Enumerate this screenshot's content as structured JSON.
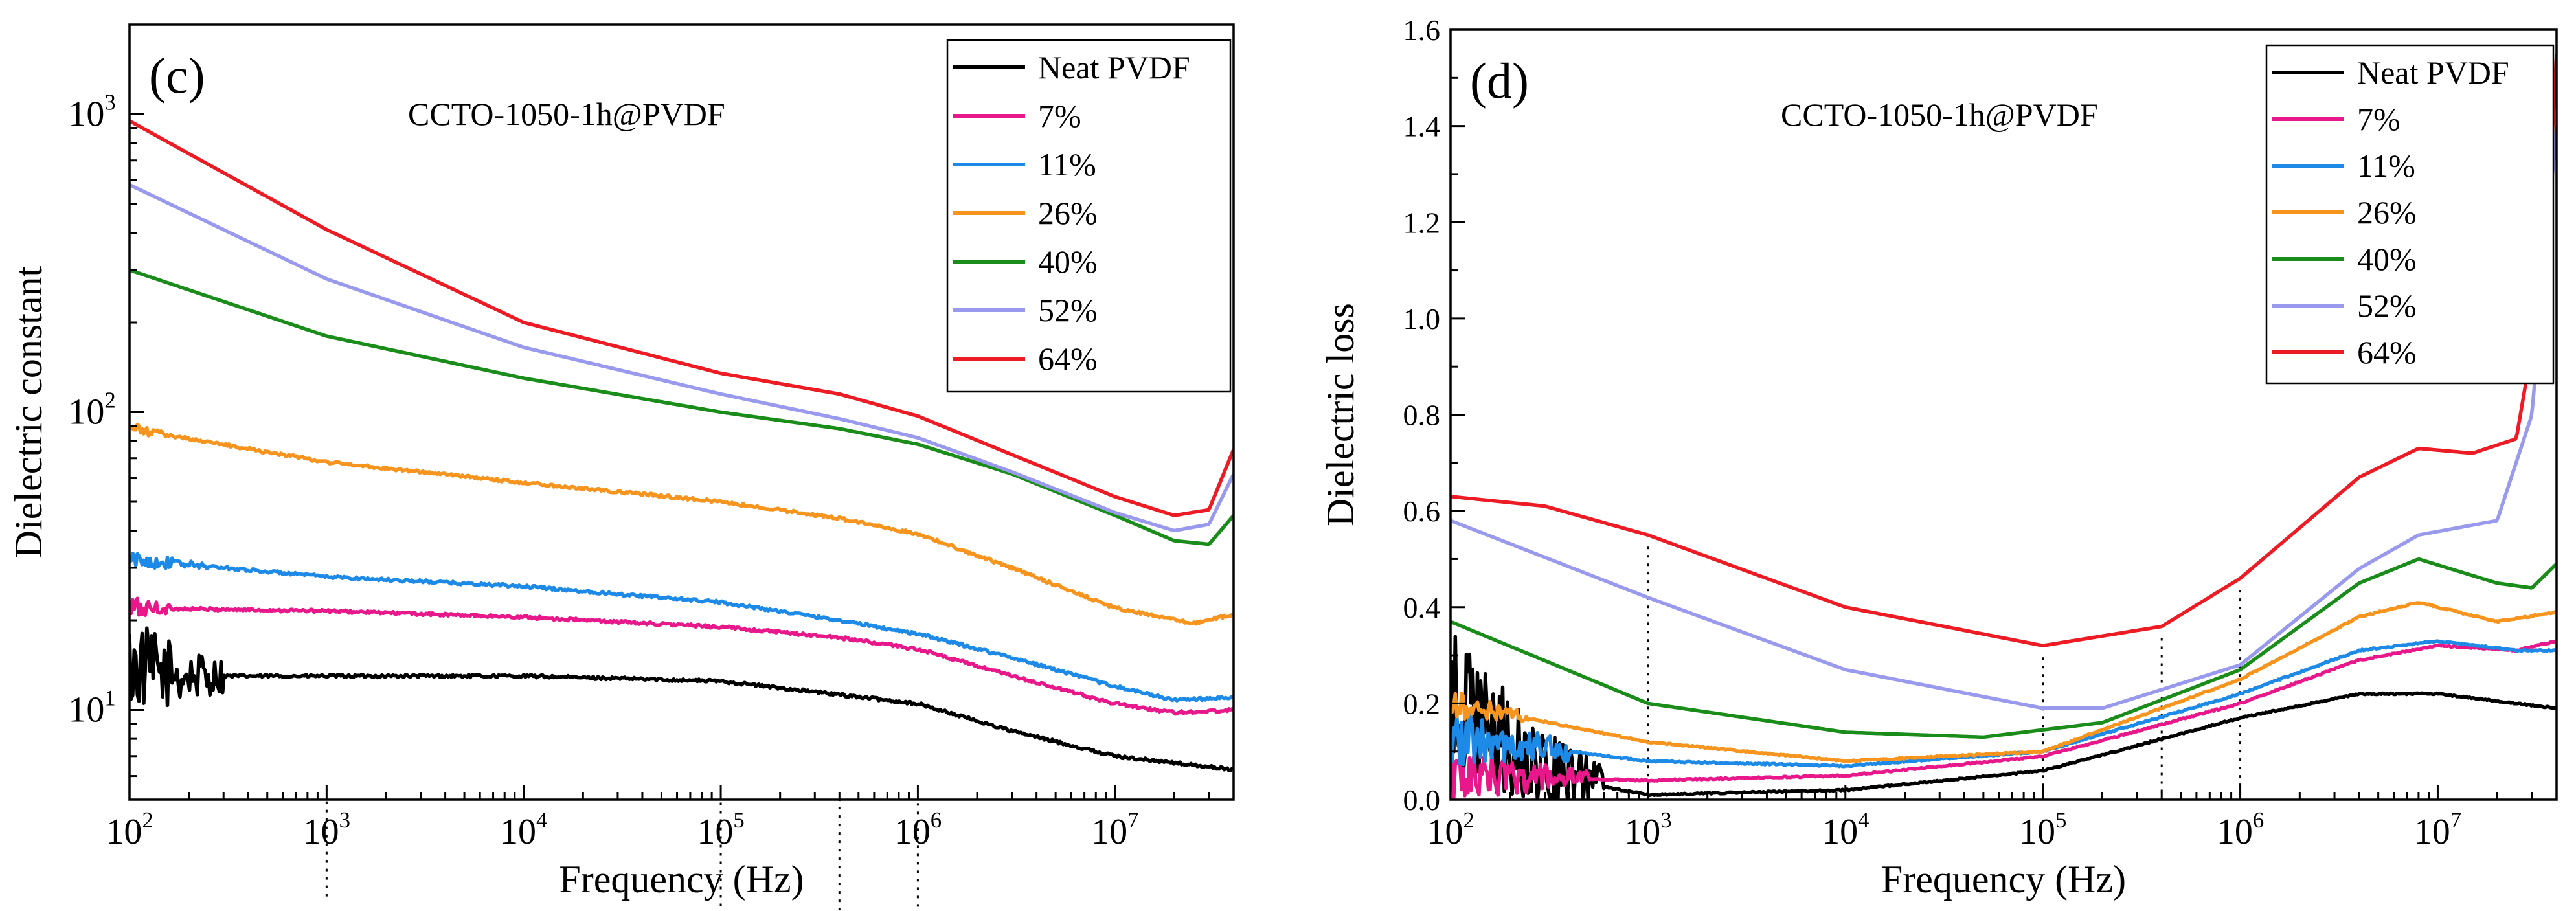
{
  "chart_data": [
    {
      "panel_label": "(c)",
      "type": "line",
      "annotation": "CCTO-1050-1h@PVDF",
      "xlabel": "Frequency (Hz)",
      "ylabel": "Dielectric constant",
      "xscale": "log",
      "yscale": "log",
      "xlim": [
        100,
        40000000
      ],
      "ylim": [
        5,
        2000
      ],
      "x_ticks": [
        {
          "value": 100,
          "base": "10",
          "exp": "2"
        },
        {
          "value": 1000,
          "base": "10",
          "exp": "3"
        },
        {
          "value": 10000,
          "base": "10",
          "exp": "4"
        },
        {
          "value": 100000,
          "base": "10",
          "exp": "5"
        },
        {
          "value": 1000000,
          "base": "10",
          "exp": "6"
        },
        {
          "value": 10000000,
          "base": "10",
          "exp": "7"
        }
      ],
      "y_ticks": [
        {
          "value": 10,
          "base": "10",
          "exp": "1"
        },
        {
          "value": 100,
          "base": "10",
          "exp": "2"
        },
        {
          "value": 1000,
          "base": "10",
          "exp": "3"
        }
      ],
      "reference_lines_x": [
        1000,
        100000,
        400000,
        1000000
      ],
      "legend_position": "top-right",
      "grid": false,
      "series": [
        {
          "name": "Neat PVDF",
          "color": "#000000",
          "noise_until": 300,
          "noise_amp": 0.35,
          "points": [
            [
              100,
              14
            ],
            [
              200,
              13
            ],
            [
              1000,
              13
            ],
            [
              10000,
              13
            ],
            [
              100000,
              12.5
            ],
            [
              300000,
              11.5
            ],
            [
              1000000,
              10.5
            ],
            [
              3000000,
              8.5
            ],
            [
              10000000,
              7
            ],
            [
              40000000,
              6.3
            ]
          ]
        },
        {
          "name": "7%",
          "color": "#e8178a",
          "noise_until": 160,
          "noise_amp": 0.1,
          "points": [
            [
              100,
              22
            ],
            [
              1000,
              21.5
            ],
            [
              10000,
              20.5
            ],
            [
              100000,
              19
            ],
            [
              400000,
              17.5
            ],
            [
              1000000,
              16
            ],
            [
              3000000,
              13
            ],
            [
              10000000,
              10.5
            ],
            [
              20000000,
              9.8
            ],
            [
              40000000,
              10
            ]
          ]
        },
        {
          "name": "11%",
          "color": "#1e8ae8",
          "noise_until": 250,
          "noise_amp": 0.06,
          "points": [
            [
              100,
              32
            ],
            [
              1000,
              28
            ],
            [
              10000,
              26
            ],
            [
              100000,
              23
            ],
            [
              400000,
              20
            ],
            [
              1000000,
              18
            ],
            [
              3000000,
              15
            ],
            [
              10000000,
              12
            ],
            [
              20000000,
              10.8
            ],
            [
              40000000,
              11
            ]
          ]
        },
        {
          "name": "26%",
          "color": "#f7941d",
          "noise_until": 160,
          "noise_amp": 0.05,
          "points": [
            [
              100,
              88
            ],
            [
              1000,
              68
            ],
            [
              10000,
              58
            ],
            [
              100000,
              50
            ],
            [
              400000,
              44
            ],
            [
              1000000,
              39
            ],
            [
              3000000,
              30
            ],
            [
              10000000,
              22
            ],
            [
              25000000,
              19.5
            ],
            [
              40000000,
              21
            ]
          ]
        },
        {
          "name": "40%",
          "color": "#1a8c1a",
          "noise_until": 0,
          "noise_amp": 0,
          "points": [
            [
              100,
              300
            ],
            [
              1000,
              180
            ],
            [
              10000,
              130
            ],
            [
              100000,
              100
            ],
            [
              400000,
              88
            ],
            [
              1000000,
              78
            ],
            [
              3000000,
              62
            ],
            [
              10000000,
              45
            ],
            [
              20000000,
              37
            ],
            [
              30000000,
              36
            ],
            [
              40000000,
              45
            ]
          ]
        },
        {
          "name": "52%",
          "color": "#9999ee",
          "noise_until": 0,
          "noise_amp": 0,
          "points": [
            [
              100,
              580
            ],
            [
              1000,
              280
            ],
            [
              10000,
              165
            ],
            [
              100000,
              115
            ],
            [
              400000,
              95
            ],
            [
              1000000,
              82
            ],
            [
              3000000,
              63
            ],
            [
              10000000,
              46
            ],
            [
              20000000,
              40
            ],
            [
              30000000,
              42
            ],
            [
              40000000,
              62
            ]
          ]
        },
        {
          "name": "64%",
          "color": "#ed1c24",
          "noise_until": 0,
          "noise_amp": 0,
          "points": [
            [
              100,
              950
            ],
            [
              1000,
              410
            ],
            [
              10000,
              200
            ],
            [
              100000,
              135
            ],
            [
              400000,
              115
            ],
            [
              1000000,
              97
            ],
            [
              3000000,
              72
            ],
            [
              10000000,
              52
            ],
            [
              20000000,
              45
            ],
            [
              30000000,
              47
            ],
            [
              40000000,
              75
            ]
          ]
        }
      ]
    },
    {
      "panel_label": "(d)",
      "type": "line",
      "annotation": "CCTO-1050-1h@PVDF",
      "xlabel": "Frequency (Hz)",
      "ylabel": "Dielectric loss",
      "xscale": "log",
      "yscale": "linear",
      "xlim": [
        100,
        40000000
      ],
      "ylim": [
        0,
        1.6
      ],
      "x_ticks": [
        {
          "value": 100,
          "base": "10",
          "exp": "2"
        },
        {
          "value": 1000,
          "base": "10",
          "exp": "3"
        },
        {
          "value": 10000,
          "base": "10",
          "exp": "4"
        },
        {
          "value": 100000,
          "base": "10",
          "exp": "5"
        },
        {
          "value": 1000000,
          "base": "10",
          "exp": "6"
        },
        {
          "value": 10000000,
          "base": "10",
          "exp": "7"
        }
      ],
      "y_ticks": [
        {
          "value": 0,
          "label": "0.0"
        },
        {
          "value": 0.2,
          "label": "0.2"
        },
        {
          "value": 0.4,
          "label": "0.4"
        },
        {
          "value": 0.6,
          "label": "0.6"
        },
        {
          "value": 0.8,
          "label": "0.8"
        },
        {
          "value": 1.0,
          "label": "1.0"
        },
        {
          "value": 1.2,
          "label": "1.2"
        },
        {
          "value": 1.4,
          "label": "1.4"
        },
        {
          "value": 1.6,
          "label": "1.6"
        }
      ],
      "reference_lines_x": [
        1000,
        100000,
        400000,
        1000000
      ],
      "legend_position": "top-right",
      "grid": false,
      "series": [
        {
          "name": "Neat PVDF",
          "color": "#000000",
          "noise_until": 600,
          "noise_amp": 0.15,
          "points": [
            [
              100,
              0.2
            ],
            [
              300,
              0.05
            ],
            [
              1000,
              0.01
            ],
            [
              10000,
              0.02
            ],
            [
              100000,
              0.06
            ],
            [
              1000000,
              0.17
            ],
            [
              4000000,
              0.22
            ],
            [
              10000000,
              0.22
            ],
            [
              40000000,
              0.19
            ]
          ]
        },
        {
          "name": "7%",
          "color": "#e8178a",
          "noise_until": 500,
          "noise_amp": 0.05,
          "points": [
            [
              100,
              0.05
            ],
            [
              1000,
              0.04
            ],
            [
              10000,
              0.05
            ],
            [
              100000,
              0.09
            ],
            [
              1000000,
              0.2
            ],
            [
              4000000,
              0.29
            ],
            [
              10000000,
              0.32
            ],
            [
              25000000,
              0.31
            ],
            [
              40000000,
              0.33
            ]
          ]
        },
        {
          "name": "11%",
          "color": "#1e8ae8",
          "noise_until": 400,
          "noise_amp": 0.06,
          "points": [
            [
              100,
              0.13
            ],
            [
              1000,
              0.08
            ],
            [
              10000,
              0.07
            ],
            [
              100000,
              0.1
            ],
            [
              1000000,
              0.22
            ],
            [
              4000000,
              0.31
            ],
            [
              10000000,
              0.33
            ],
            [
              25000000,
              0.31
            ],
            [
              40000000,
              0.31
            ]
          ]
        },
        {
          "name": "26%",
          "color": "#f7941d",
          "noise_until": 250,
          "noise_amp": 0.03,
          "points": [
            [
              100,
              0.2
            ],
            [
              1000,
              0.12
            ],
            [
              10000,
              0.08
            ],
            [
              100000,
              0.1
            ],
            [
              1000000,
              0.25
            ],
            [
              4000000,
              0.38
            ],
            [
              8000000,
              0.41
            ],
            [
              20000000,
              0.37
            ],
            [
              40000000,
              0.39
            ]
          ]
        },
        {
          "name": "40%",
          "color": "#1a8c1a",
          "noise_until": 0,
          "noise_amp": 0,
          "points": [
            [
              100,
              0.37
            ],
            [
              1000,
              0.2
            ],
            [
              10000,
              0.14
            ],
            [
              50000,
              0.13
            ],
            [
              200000,
              0.16
            ],
            [
              1000000,
              0.27
            ],
            [
              4000000,
              0.45
            ],
            [
              8000000,
              0.5
            ],
            [
              20000000,
              0.45
            ],
            [
              30000000,
              0.44
            ],
            [
              40000000,
              0.49
            ]
          ]
        },
        {
          "name": "52%",
          "color": "#9999ee",
          "noise_until": 0,
          "noise_amp": 0,
          "points": [
            [
              100,
              0.58
            ],
            [
              1000,
              0.42
            ],
            [
              10000,
              0.27
            ],
            [
              100000,
              0.19
            ],
            [
              200000,
              0.19
            ],
            [
              1000000,
              0.28
            ],
            [
              4000000,
              0.48
            ],
            [
              8000000,
              0.55
            ],
            [
              20000000,
              0.58
            ],
            [
              30000000,
              0.8
            ],
            [
              40000000,
              1.4
            ]
          ]
        },
        {
          "name": "64%",
          "color": "#ed1c24",
          "noise_until": 0,
          "noise_amp": 0,
          "points": [
            [
              100,
              0.63
            ],
            [
              300,
              0.61
            ],
            [
              1000,
              0.55
            ],
            [
              10000,
              0.4
            ],
            [
              100000,
              0.32
            ],
            [
              400000,
              0.36
            ],
            [
              1000000,
              0.46
            ],
            [
              4000000,
              0.67
            ],
            [
              8000000,
              0.73
            ],
            [
              15000000,
              0.72
            ],
            [
              25000000,
              0.75
            ],
            [
              35000000,
              1.1
            ],
            [
              40000000,
              1.55
            ]
          ]
        }
      ]
    }
  ]
}
